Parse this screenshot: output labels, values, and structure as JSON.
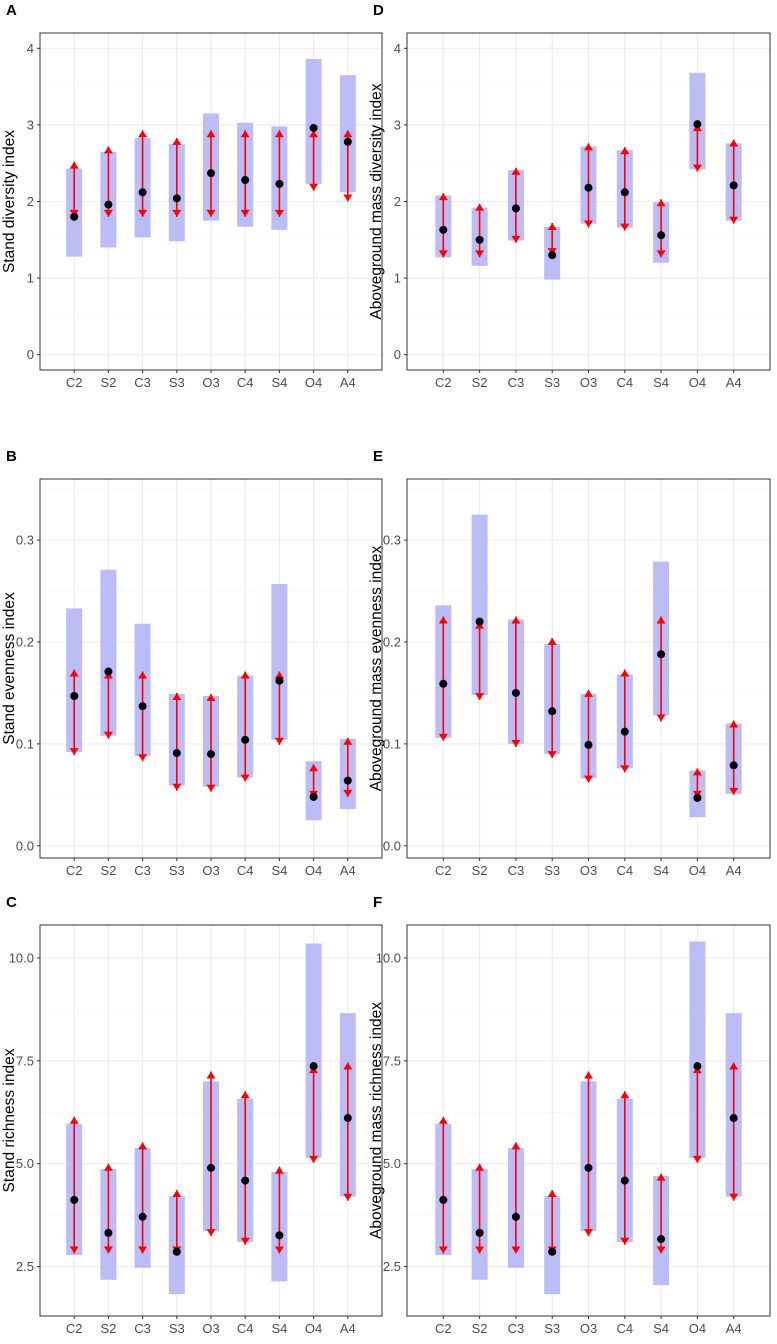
{
  "colors": {
    "ci_band": "#b8b8f7",
    "arrow": "#ff0000",
    "point": "#000000",
    "grid": "#ebebeb",
    "panel_border": "#333333",
    "tick_text": "#4d4d4d"
  },
  "chart_data": [
    {
      "type": "scatter",
      "panel_label": "A",
      "ylabel": "Stand diversity index",
      "xlabel": "",
      "categories": [
        "C2",
        "S2",
        "C3",
        "S3",
        "O3",
        "C4",
        "S4",
        "O4",
        "A4"
      ],
      "ylim": [
        -0.2,
        4.2
      ],
      "yticks": [
        0,
        1,
        2,
        3,
        4
      ],
      "ytick_labels": [
        "0",
        "1",
        "2",
        "3",
        "4"
      ],
      "points": [
        1.8,
        1.96,
        2.12,
        2.04,
        2.37,
        2.28,
        2.23,
        2.96,
        2.78
      ],
      "band_low": [
        1.28,
        1.4,
        1.53,
        1.48,
        1.75,
        1.67,
        1.63,
        2.23,
        2.12
      ],
      "band_high": [
        2.43,
        2.65,
        2.83,
        2.75,
        3.15,
        3.03,
        2.98,
        3.86,
        3.65
      ],
      "arrow_low": [
        1.8,
        1.8,
        1.8,
        1.8,
        1.8,
        1.8,
        1.8,
        2.14,
        2.0
      ],
      "arrow_high": [
        2.52,
        2.72,
        2.93,
        2.83,
        2.93,
        2.93,
        2.93,
        2.93,
        2.93
      ]
    },
    {
      "type": "scatter",
      "panel_label": "B",
      "ylabel": "Stand evenness index",
      "xlabel": "",
      "categories": [
        "C2",
        "S2",
        "C3",
        "S3",
        "O3",
        "C4",
        "S4",
        "O4",
        "A4"
      ],
      "ylim": [
        -0.012,
        0.36
      ],
      "yticks": [
        0,
        0.1,
        0.2,
        0.3
      ],
      "ytick_labels": [
        "0.0",
        "0.1",
        "0.2",
        "0.3"
      ],
      "points": [
        0.147,
        0.171,
        0.137,
        0.091,
        0.09,
        0.104,
        0.162,
        0.048,
        0.064
      ],
      "band_low": [
        0.092,
        0.108,
        0.088,
        0.059,
        0.058,
        0.067,
        0.104,
        0.025,
        0.036
      ],
      "band_high": [
        0.233,
        0.271,
        0.218,
        0.149,
        0.147,
        0.167,
        0.257,
        0.083,
        0.105
      ],
      "arrow_low": [
        0.089,
        0.105,
        0.083,
        0.054,
        0.053,
        0.063,
        0.099,
        0.047,
        0.048
      ],
      "arrow_high": [
        0.173,
        0.171,
        0.171,
        0.15,
        0.149,
        0.171,
        0.171,
        0.08,
        0.106
      ]
    },
    {
      "type": "scatter",
      "panel_label": "C",
      "ylabel": "Stand richness index",
      "xlabel": "",
      "categories": [
        "C2",
        "S2",
        "C3",
        "S3",
        "O3",
        "C4",
        "S4",
        "O4",
        "A4"
      ],
      "ylim": [
        1.3,
        10.8
      ],
      "yticks": [
        2.5,
        5,
        7.5,
        10
      ],
      "ytick_labels": [
        "2.5",
        "5.0",
        "7.5",
        "10.0"
      ],
      "points": [
        4.12,
        3.32,
        3.71,
        2.86,
        4.9,
        4.59,
        3.26,
        7.37,
        6.11
      ],
      "band_low": [
        2.78,
        2.18,
        2.47,
        1.83,
        3.36,
        3.1,
        2.14,
        5.14,
        4.2
      ],
      "band_high": [
        5.97,
        4.87,
        5.38,
        4.21,
        7.0,
        6.58,
        4.8,
        10.35,
        8.66
      ],
      "arrow_low": [
        2.82,
        2.82,
        2.82,
        2.82,
        3.24,
        3.03,
        2.82,
        5.02,
        4.1
      ],
      "arrow_high": [
        6.14,
        5.0,
        5.52,
        4.36,
        7.24,
        6.76,
        4.93,
        7.37,
        7.46
      ]
    },
    {
      "type": "scatter",
      "panel_label": "D",
      "ylabel": "Aboveground mass diversity index",
      "xlabel": "",
      "categories": [
        "C2",
        "S2",
        "C3",
        "S3",
        "O3",
        "C4",
        "S4",
        "O4",
        "A4"
      ],
      "ylim": [
        -0.2,
        4.2
      ],
      "yticks": [
        0,
        1,
        2,
        3,
        4
      ],
      "ytick_labels": [
        "0",
        "1",
        "2",
        "3",
        "4"
      ],
      "points": [
        1.63,
        1.5,
        1.91,
        1.3,
        2.18,
        2.12,
        1.56,
        3.01,
        2.21
      ],
      "band_low": [
        1.27,
        1.16,
        1.49,
        0.98,
        1.71,
        1.66,
        1.2,
        2.42,
        1.75
      ],
      "band_high": [
        2.08,
        1.92,
        2.41,
        1.67,
        2.72,
        2.67,
        1.99,
        3.68,
        2.76
      ],
      "arrow_low": [
        1.27,
        1.27,
        1.46,
        1.3,
        1.66,
        1.62,
        1.27,
        2.39,
        1.71
      ],
      "arrow_high": [
        2.11,
        1.97,
        2.44,
        1.72,
        2.76,
        2.71,
        2.03,
        3.01,
        2.81
      ]
    },
    {
      "type": "scatter",
      "panel_label": "E",
      "ylabel": "Aboveground mass evenness index",
      "xlabel": "",
      "categories": [
        "C2",
        "S2",
        "C3",
        "S3",
        "O3",
        "C4",
        "S4",
        "O4",
        "A4"
      ],
      "ylim": [
        -0.012,
        0.36
      ],
      "yticks": [
        0,
        0.1,
        0.2,
        0.3
      ],
      "ytick_labels": [
        "0.0",
        "0.1",
        "0.2",
        "0.3"
      ],
      "points": [
        0.159,
        0.22,
        0.15,
        0.132,
        0.099,
        0.112,
        0.188,
        0.047,
        0.079
      ],
      "band_low": [
        0.106,
        0.148,
        0.1,
        0.09,
        0.066,
        0.076,
        0.128,
        0.028,
        0.051
      ],
      "band_high": [
        0.236,
        0.325,
        0.222,
        0.198,
        0.149,
        0.168,
        0.279,
        0.074,
        0.12
      ],
      "arrow_low": [
        0.103,
        0.143,
        0.097,
        0.086,
        0.062,
        0.072,
        0.122,
        0.047,
        0.05
      ],
      "arrow_high": [
        0.225,
        0.22,
        0.225,
        0.204,
        0.153,
        0.173,
        0.225,
        0.076,
        0.123
      ]
    },
    {
      "type": "scatter",
      "panel_label": "F",
      "ylabel": "Aboveground mass richness index",
      "xlabel": "",
      "categories": [
        "C2",
        "S2",
        "C3",
        "S3",
        "O3",
        "C4",
        "S4",
        "O4",
        "A4"
      ],
      "ylim": [
        1.3,
        10.8
      ],
      "yticks": [
        2.5,
        5,
        7.5,
        10
      ],
      "ytick_labels": [
        "2.5",
        "5.0",
        "7.5",
        "10.0"
      ],
      "points": [
        4.12,
        3.32,
        3.71,
        2.86,
        4.9,
        4.59,
        3.17,
        7.37,
        6.11
      ],
      "band_low": [
        2.78,
        2.18,
        2.47,
        1.83,
        3.36,
        3.1,
        2.05,
        5.14,
        4.2
      ],
      "band_high": [
        5.97,
        4.87,
        5.38,
        4.21,
        7.0,
        6.58,
        4.7,
        10.4,
        8.66
      ],
      "arrow_low": [
        2.82,
        2.82,
        2.82,
        2.82,
        3.24,
        3.03,
        2.82,
        5.02,
        4.1
      ],
      "arrow_high": [
        6.14,
        5.0,
        5.52,
        4.36,
        7.24,
        6.76,
        4.76,
        7.37,
        7.46
      ]
    }
  ]
}
